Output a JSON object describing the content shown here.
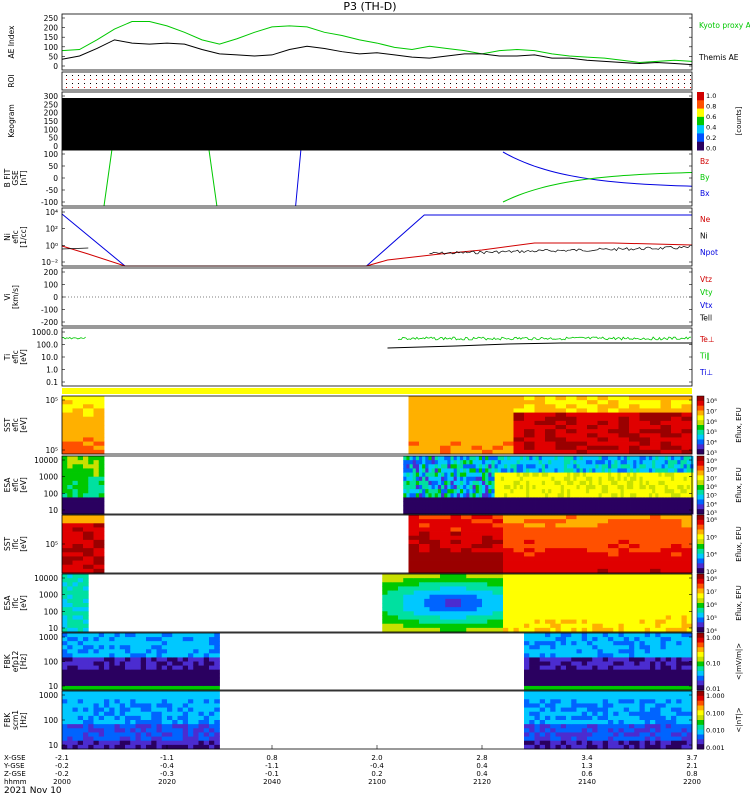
{
  "title": "P3 (TH-D)",
  "date_label": "2021 Nov 10",
  "colors": {
    "blue": "#0000e0",
    "red": "#d00000",
    "green": "#00c800",
    "black": "#000000",
    "yellow": "#ffff00",
    "spec_ramp": [
      "#2a0060",
      "#4b2cd0",
      "#0064ff",
      "#00c8ff",
      "#00e0a0",
      "#00c800",
      "#c8e000",
      "#ffff00",
      "#ffb000",
      "#ff5000",
      "#e00000",
      "#9a0000"
    ]
  },
  "chart_data": [
    {
      "type": "line",
      "panel": "ae",
      "ylabel": "AE Index",
      "yticks": [
        "250",
        "200",
        "150",
        "100",
        "50",
        "0"
      ],
      "ylim": [
        0,
        260
      ],
      "legend": [
        "Kyoto proxy AE",
        "Themis AE"
      ],
      "x_minutes": [
        0,
        5,
        10,
        15,
        20,
        25,
        30,
        35,
        40,
        45,
        50,
        55,
        60,
        65,
        70,
        75,
        80,
        85,
        90,
        95,
        100,
        105,
        110,
        115,
        120,
        125,
        130,
        135,
        140,
        145,
        150,
        155,
        160,
        165,
        170,
        175,
        180
      ],
      "series": [
        {
          "name": "Kyoto proxy AE",
          "color": "green",
          "values": [
            90,
            95,
            140,
            190,
            225,
            225,
            205,
            175,
            140,
            120,
            145,
            175,
            200,
            205,
            200,
            175,
            160,
            140,
            125,
            105,
            95,
            110,
            100,
            90,
            75,
            90,
            95,
            90,
            75,
            65,
            60,
            55,
            45,
            35,
            40,
            45,
            40
          ]
        },
        {
          "name": "Themis AE",
          "color": "black",
          "values": [
            50,
            65,
            100,
            140,
            125,
            120,
            125,
            120,
            95,
            75,
            70,
            65,
            70,
            95,
            110,
            100,
            85,
            75,
            80,
            70,
            60,
            55,
            65,
            75,
            75,
            65,
            65,
            70,
            55,
            55,
            45,
            40,
            35,
            30,
            35,
            30,
            25
          ]
        }
      ]
    },
    {
      "type": "heatmap",
      "panel": "roi",
      "ylabel": "ROI"
    },
    {
      "type": "heatmap",
      "panel": "keogram",
      "ylabel": "Keogram",
      "yticks": [
        "300",
        "250",
        "200",
        "150",
        "100",
        "50",
        "0"
      ],
      "colorbar_ticks": [
        "1.0",
        "0.8",
        "0.6",
        "0.4",
        "0.2",
        "0.0"
      ],
      "colorbar_label": "[counts]"
    },
    {
      "type": "line",
      "panel": "bfit",
      "ylabel": "B FIT GSE [nT]",
      "yticks": [
        "100",
        "50",
        "0",
        "-50",
        "-100"
      ],
      "ylim": [
        -100,
        100
      ],
      "legend": [
        "Bz",
        "By",
        "Bx"
      ]
    },
    {
      "type": "line",
      "panel": "ni",
      "ylabel": "Ni eflc [1/cc]",
      "yticks": [
        "10⁴",
        "10²",
        "10⁰",
        "10⁻²"
      ],
      "legend": [
        "Ne",
        "Ni",
        "Npot"
      ]
    },
    {
      "type": "line",
      "panel": "vi",
      "ylabel": "Vi [km/s]",
      "yticks": [
        "200",
        "100",
        "0",
        "-100",
        "-200"
      ],
      "legend": [
        "Vtz",
        "Vty",
        "Vtx",
        "Tell"
      ]
    },
    {
      "type": "line",
      "panel": "ti",
      "ylabel": "Ti eflc [eV]",
      "yticks": [
        "1000.0",
        "100.0",
        "10.0",
        "1.0",
        "0.1"
      ],
      "legend": [
        "Te⊥",
        "Ti∥",
        "Ti⊥"
      ]
    },
    {
      "type": "heatmap",
      "panel": "sst_e",
      "ylabel": "SST eflc [eV]",
      "yticks": [
        "10⁵",
        "10⁵"
      ],
      "colorbar_ticks": [
        "10⁸",
        "10⁷",
        "10⁶",
        "10⁵",
        "10⁴",
        "10³"
      ],
      "colorbar_label": "Eflux, EFU"
    },
    {
      "type": "heatmap",
      "panel": "esa_e",
      "ylabel": "ESA eflc [eV]",
      "yticks": [
        "10000",
        "1000",
        "100",
        "10"
      ],
      "colorbar_ticks": [
        "10⁹",
        "10⁸",
        "10⁷",
        "10⁶",
        "10⁵",
        "10⁴",
        "10³"
      ],
      "colorbar_label": "Eflux, EFU"
    },
    {
      "type": "heatmap",
      "panel": "sst_i",
      "ylabel": "SST iflc [eV]",
      "yticks": [
        "10⁵"
      ],
      "colorbar_ticks": [
        "10⁸",
        "10⁶",
        "10⁴",
        "10²"
      ],
      "colorbar_label": "Eflux, EFU"
    },
    {
      "type": "heatmap",
      "panel": "esa_i",
      "ylabel": "ESA iflc [eV]",
      "yticks": [
        "10000",
        "1000",
        "100",
        "10"
      ],
      "colorbar_ticks": [
        "10⁸",
        "10⁷",
        "10⁶",
        "10⁵",
        "10⁴"
      ],
      "colorbar_label": "Eflux, EFU"
    },
    {
      "type": "heatmap",
      "panel": "fbk_e",
      "ylabel": "FBK efp12 [Hz]",
      "yticks": [
        "1000",
        "100",
        "10"
      ],
      "colorbar_ticks": [
        "1.00",
        "0.10",
        "0.01"
      ],
      "colorbar_label": "<|mV/m|>"
    },
    {
      "type": "heatmap",
      "panel": "fbk_b",
      "ylabel": "FBK scm1 [Hz]",
      "yticks": [
        "1000",
        "100",
        "10"
      ],
      "colorbar_ticks": [
        "1.000",
        "0.100",
        "0.010",
        "0.001"
      ],
      "colorbar_label": "<|nT|>"
    }
  ],
  "xaxis": {
    "row_labels": [
      "X-GSE",
      "Y-GSE",
      "Z-GSE",
      "hhmm"
    ],
    "columns": [
      {
        "x": "-2.1",
        "y": "-0.2",
        "z": "-0.2",
        "t": "2000"
      },
      {
        "x": "-1.1",
        "y": "-0.4",
        "z": "-0.3",
        "t": "2020"
      },
      {
        "x": "0.8",
        "y": "-1.1",
        "z": "-0.1",
        "t": "2040"
      },
      {
        "x": "2.0",
        "y": "-0.4",
        "z": "0.2",
        "t": "2100"
      },
      {
        "x": "2.8",
        "y": "0.4",
        "z": "0.4",
        "t": "2120"
      },
      {
        "x": "3.4",
        "y": "1.3",
        "z": "0.6",
        "t": "2140"
      },
      {
        "x": "3.7",
        "y": "2.1",
        "z": "0.8",
        "t": "2200"
      }
    ]
  }
}
